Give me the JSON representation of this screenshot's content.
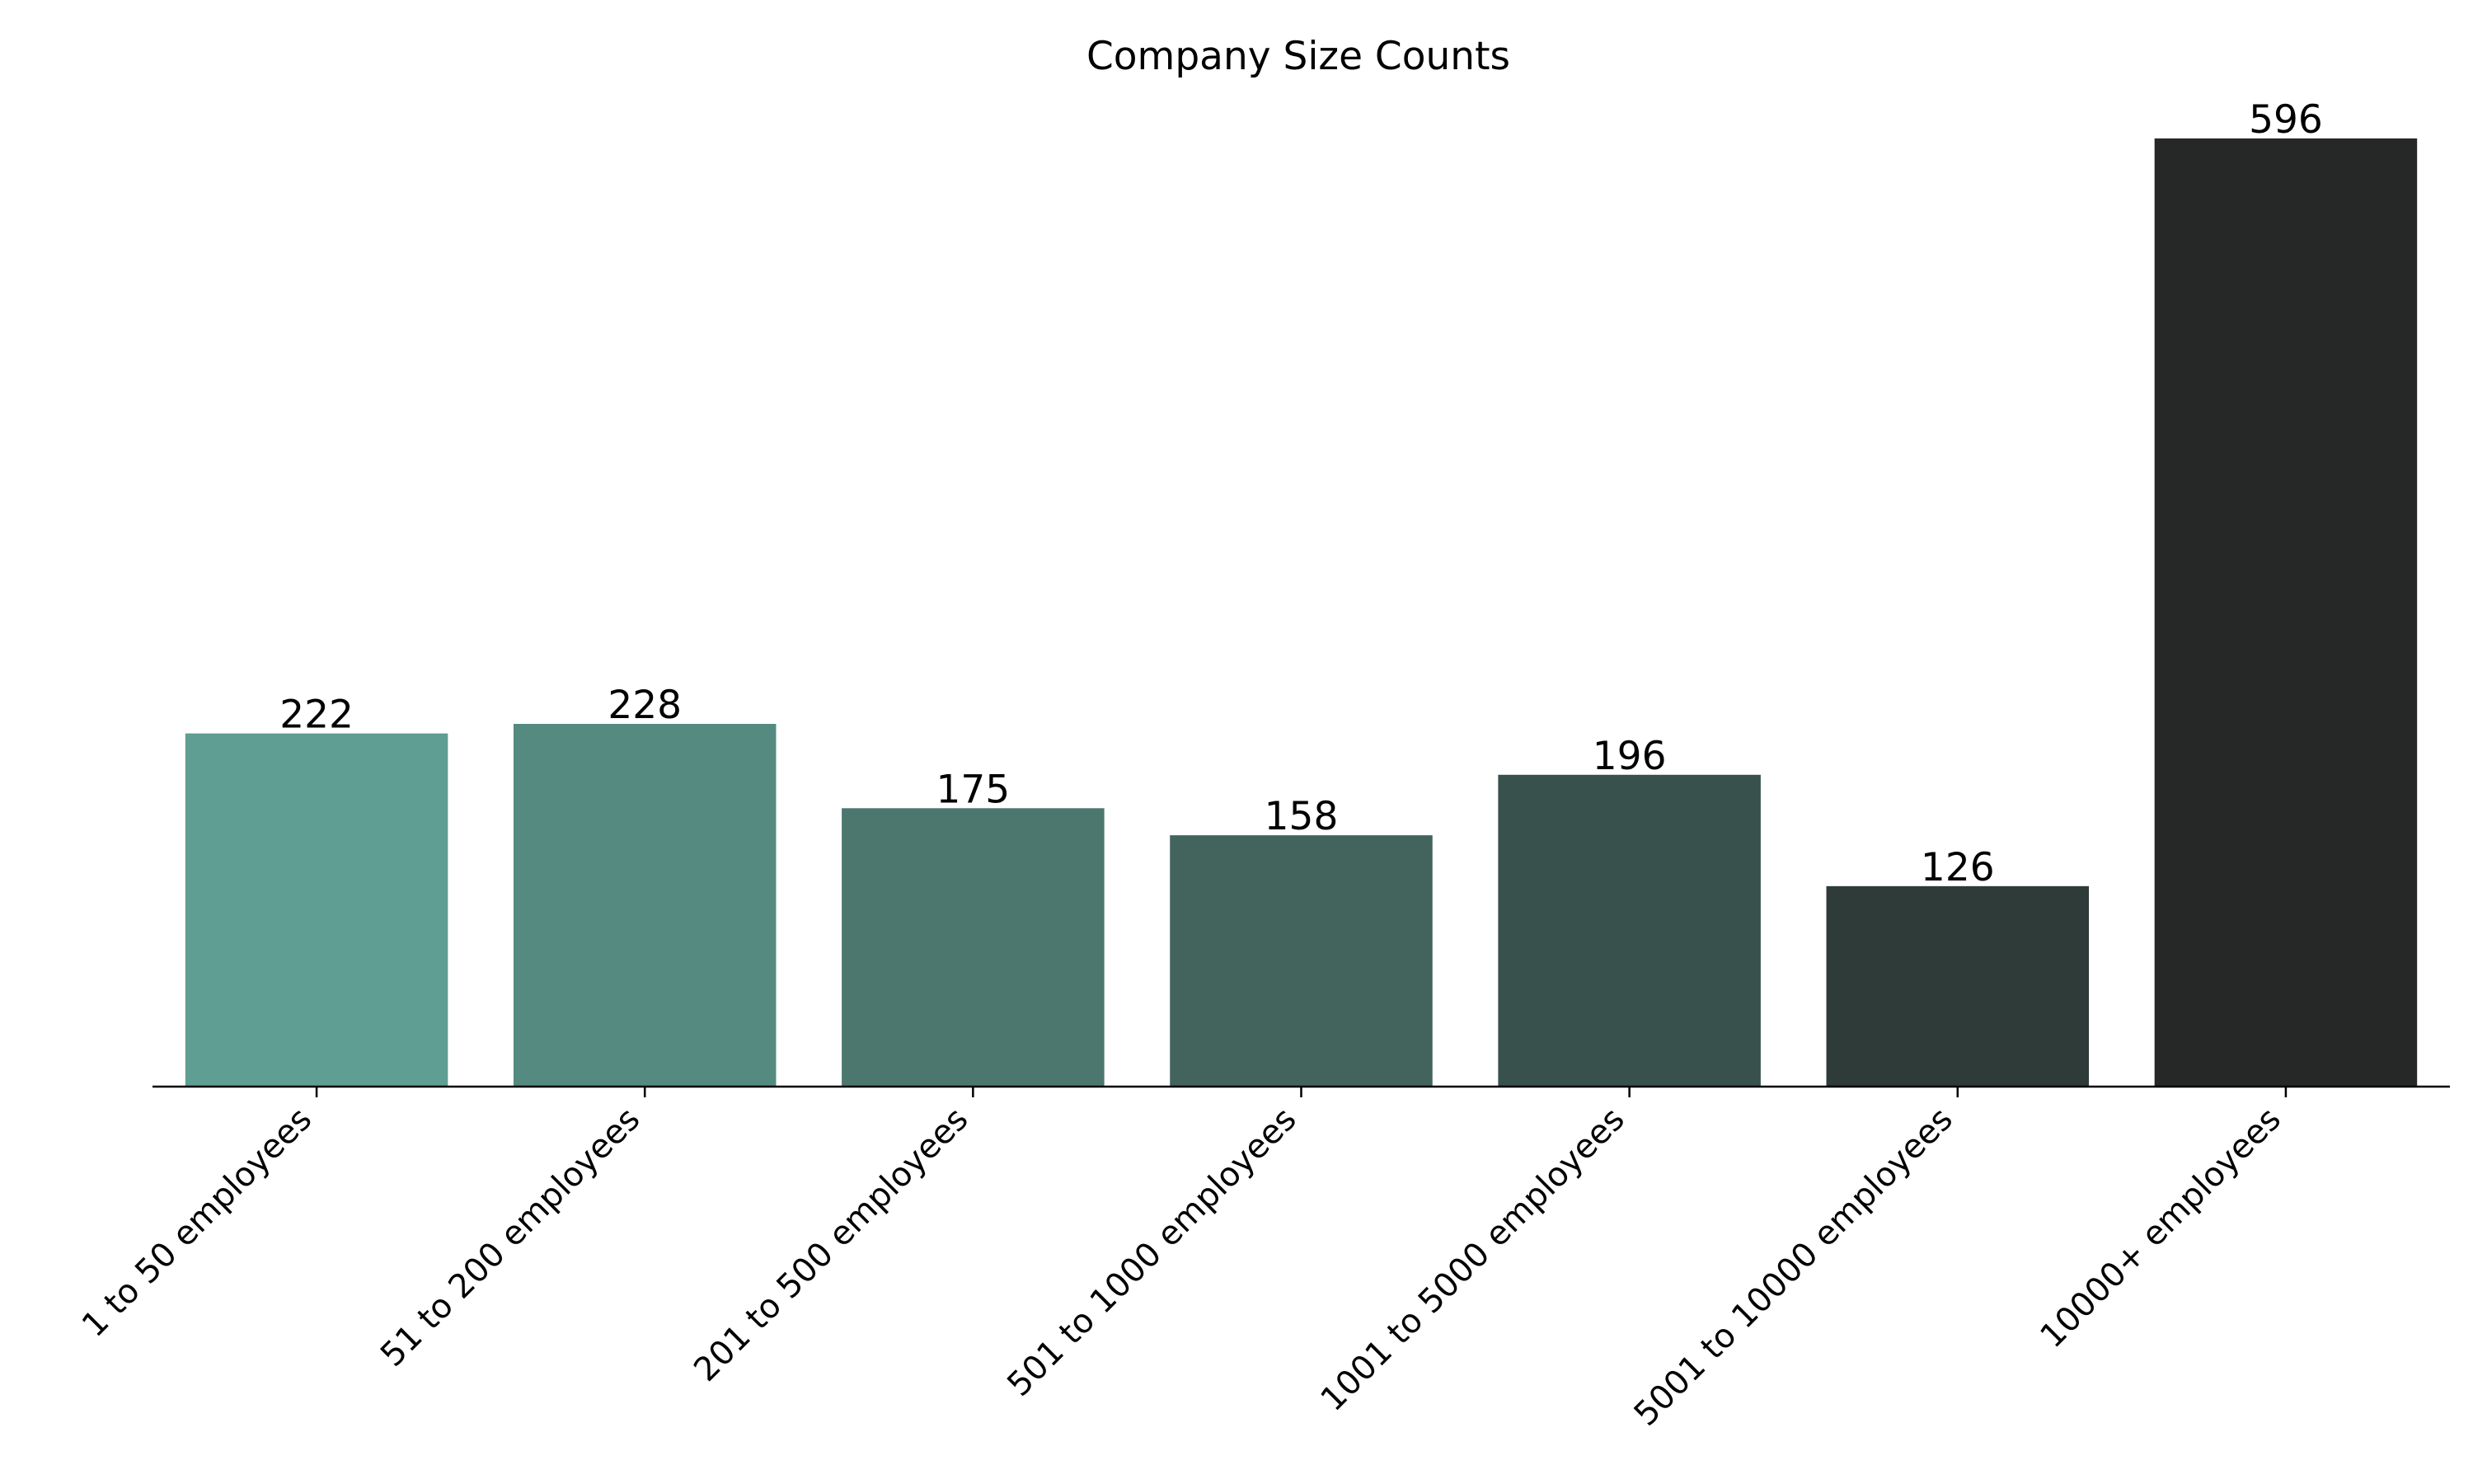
{
  "chart_data": {
    "type": "bar",
    "title": "Company Size Counts",
    "xlabel": "",
    "ylabel": "",
    "categories": [
      "1 to 50 employees",
      "51 to 200 employees",
      "201 to 500 employees",
      "501 to 1000 employees",
      "1001 to 5000 employees",
      "5001 to 10000 employees",
      "10000+ employees"
    ],
    "values": [
      222,
      228,
      175,
      158,
      196,
      126,
      596
    ],
    "colors": [
      "#5f9e92",
      "#558a80",
      "#4c776e",
      "#42645d",
      "#38514d",
      "#2e3b38",
      "#252827"
    ],
    "ylim": [
      0,
      626
    ],
    "grid": false,
    "legend": "none",
    "show_value_labels": true,
    "yaxis_visible": false
  }
}
